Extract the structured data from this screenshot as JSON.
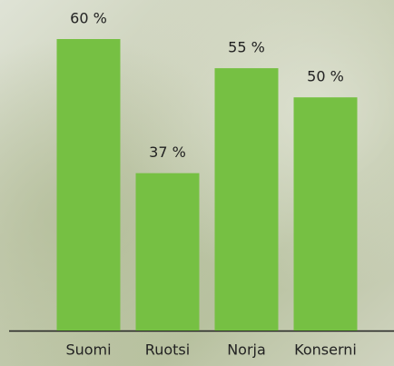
{
  "chart_data": {
    "type": "bar",
    "categories": [
      "Suomi",
      "Ruotsi",
      "Norja",
      "Konserni"
    ],
    "values": [
      60,
      37,
      55,
      50
    ],
    "value_labels": [
      "60 %",
      "37 %",
      "55 %",
      "50 %"
    ],
    "color": "#76c043",
    "ylim": [
      10,
      60
    ]
  }
}
